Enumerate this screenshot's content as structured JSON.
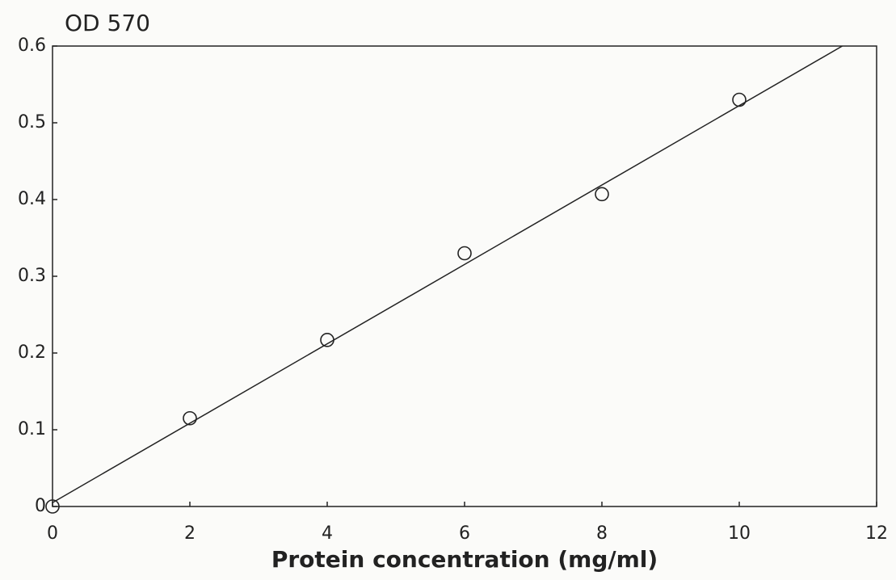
{
  "chart_data": {
    "type": "scatter",
    "y_label": "OD 570",
    "x_label": "Protein concentration (mg/ml)",
    "xlim": [
      0,
      12
    ],
    "xticks": [
      0,
      2,
      4,
      6,
      8,
      10,
      12
    ],
    "ylim": [
      0,
      0.6
    ],
    "yticks": [
      0,
      0.1,
      0.2,
      0.3,
      0.4,
      0.5,
      0.6
    ],
    "series": [
      {
        "type": "scatter",
        "color": "#222222",
        "x": [
          0,
          2,
          4,
          6,
          8,
          10
        ],
        "values": [
          0.0,
          0.115,
          0.217,
          0.33,
          0.407,
          0.53
        ]
      },
      {
        "type": "line",
        "color": "#222222",
        "x": [
          0,
          11.5
        ],
        "values": [
          0.005,
          0.6
        ]
      }
    ]
  }
}
